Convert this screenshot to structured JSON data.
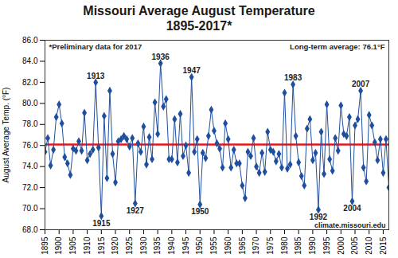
{
  "chart_data": {
    "type": "line",
    "title": "Missouri Average August Temperature",
    "subtitle": "1895-2017*",
    "y_label": "August Average Temp. (°F)",
    "x": [
      1895,
      1896,
      1897,
      1898,
      1899,
      1900,
      1901,
      1902,
      1903,
      1904,
      1905,
      1906,
      1907,
      1908,
      1909,
      1910,
      1911,
      1912,
      1913,
      1914,
      1915,
      1916,
      1917,
      1918,
      1919,
      1920,
      1921,
      1922,
      1923,
      1924,
      1925,
      1926,
      1927,
      1928,
      1929,
      1930,
      1931,
      1932,
      1933,
      1934,
      1935,
      1936,
      1937,
      1938,
      1939,
      1940,
      1941,
      1942,
      1943,
      1944,
      1945,
      1946,
      1947,
      1948,
      1949,
      1950,
      1951,
      1952,
      1953,
      1954,
      1955,
      1956,
      1957,
      1958,
      1959,
      1960,
      1961,
      1962,
      1963,
      1964,
      1965,
      1966,
      1967,
      1968,
      1969,
      1970,
      1971,
      1972,
      1973,
      1974,
      1975,
      1976,
      1977,
      1978,
      1979,
      1980,
      1981,
      1982,
      1983,
      1984,
      1985,
      1986,
      1987,
      1988,
      1989,
      1990,
      1991,
      1992,
      1993,
      1994,
      1995,
      1996,
      1997,
      1998,
      1999,
      2000,
      2001,
      2002,
      2003,
      2004,
      2005,
      2006,
      2007,
      2008,
      2009,
      2010,
      2011,
      2012,
      2013,
      2014,
      2015,
      2016,
      2017
    ],
    "series": [
      {
        "name": "August Average Temp.",
        "color": "#1f4f9e",
        "marker": "diamond",
        "values": [
          75.4,
          76.7,
          74.1,
          75.6,
          78.7,
          79.9,
          78.1,
          74.9,
          74.3,
          73.2,
          75.7,
          75.5,
          76.4,
          75.5,
          79.1,
          74.6,
          75.2,
          75.6,
          82.0,
          75.8,
          69.3,
          78.8,
          72.9,
          81.2,
          75.2,
          72.5,
          76.4,
          76.6,
          76.9,
          76.6,
          75.9,
          76.7,
          70.5,
          76.2,
          75.4,
          77.8,
          74.2,
          76.8,
          74.7,
          80.1,
          77.1,
          83.8,
          79.7,
          80.4,
          74.7,
          74.7,
          78.5,
          74.4,
          79.0,
          75.0,
          76.0,
          73.4,
          82.5,
          75.4,
          76.6,
          70.4,
          75.3,
          74.8,
          76.9,
          79.4,
          77.4,
          76.2,
          75.7,
          73.9,
          78.1,
          76.6,
          73.9,
          75.6,
          74.3,
          74.3,
          72.2,
          71.0,
          75.4,
          75.0,
          76.7,
          74.0,
          73.4,
          75.3,
          73.5,
          77.3,
          75.6,
          75.4,
          74.5,
          75.2,
          73.9,
          81.0,
          73.8,
          74.2,
          81.8,
          76.9,
          74.4,
          73.1,
          72.2,
          77.6,
          78.5,
          74.6,
          75.3,
          69.9,
          77.3,
          73.3,
          79.9,
          74.7,
          73.6,
          76.7,
          75.5,
          79.8,
          77.1,
          76.9,
          78.7,
          70.7,
          77.9,
          78.5,
          81.2,
          73.9,
          72.6,
          78.9,
          77.9,
          76.3,
          74.6,
          76.6,
          73.4,
          76.6,
          72.0
        ]
      }
    ],
    "average": {
      "value": 76.1,
      "label": "Long-term average: 76.1°F",
      "color": "#e8141b"
    },
    "annotations": [
      {
        "x": 1913,
        "text": "1913"
      },
      {
        "x": 1915,
        "text": "1915"
      },
      {
        "x": 1927,
        "text": "1927"
      },
      {
        "x": 1936,
        "text": "1936"
      },
      {
        "x": 1947,
        "text": "1947"
      },
      {
        "x": 1950,
        "text": "1950"
      },
      {
        "x": 1983,
        "text": "1983"
      },
      {
        "x": 1992,
        "text": "1992"
      },
      {
        "x": 2004,
        "text": "2004"
      },
      {
        "x": 2007,
        "text": "2007"
      }
    ],
    "note": "*Preliminary data for 2017",
    "source": "climate.missouri.edu",
    "xlim": [
      1895,
      2017
    ],
    "xticks": [
      1895,
      1900,
      1905,
      1910,
      1915,
      1920,
      1925,
      1930,
      1935,
      1940,
      1945,
      1950,
      1955,
      1960,
      1965,
      1970,
      1975,
      1980,
      1985,
      1990,
      1995,
      2000,
      2005,
      2010,
      2015
    ],
    "ylim": [
      68,
      86
    ],
    "yticks": [
      {
        "value": 68,
        "label": "68.0"
      },
      {
        "value": 70,
        "label": "70.0"
      },
      {
        "value": 72,
        "label": "72.0"
      },
      {
        "value": 74,
        "label": "74.0"
      },
      {
        "value": 76,
        "label": "76.0"
      },
      {
        "value": 78,
        "label": "78.0"
      },
      {
        "value": 80,
        "label": "80.0"
      },
      {
        "value": 82,
        "label": "82.0"
      },
      {
        "value": 84,
        "label": "84.0"
      },
      {
        "value": 86,
        "label": "86.0"
      }
    ],
    "grid": false
  }
}
